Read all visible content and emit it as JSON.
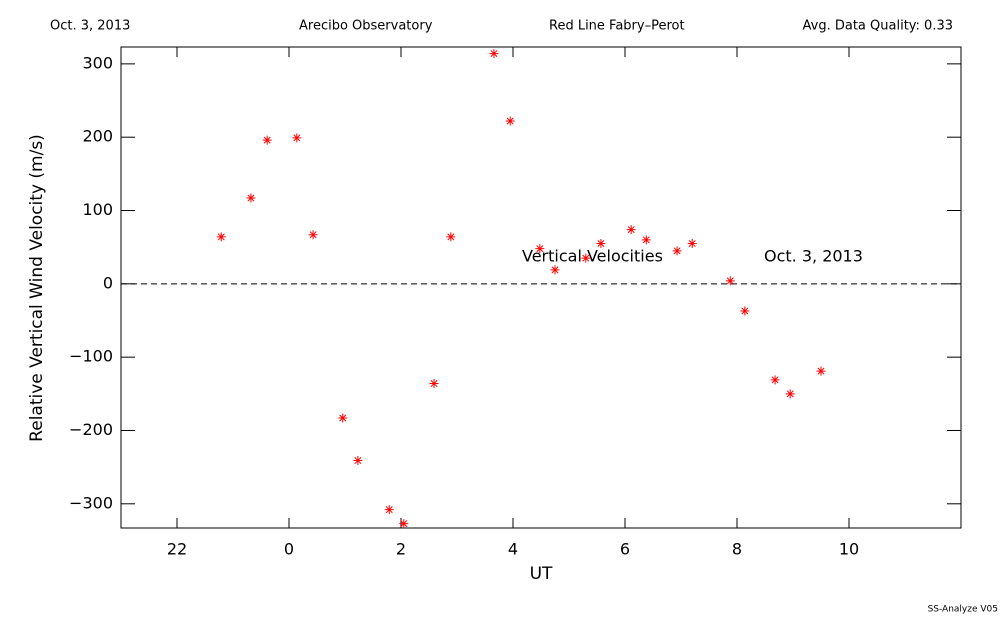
{
  "chart_data": {
    "type": "scatter",
    "header": [
      "Oct. 3, 2013",
      "Arecibo Observatory",
      "Red Line Fabry–Perot",
      "Avg. Data Quality: 0.33"
    ],
    "x_label": "UT",
    "y_label": "Relative Vertical Wind Velocity (m/s)",
    "annotations": [
      "Vertical Velocities",
      "Oct. 3, 2013"
    ],
    "footer": "SS-Analyze V05",
    "color": "#ff0000",
    "reference_line": 0,
    "xlim": [
      -3,
      12
    ],
    "xticks": [
      {
        "value": -2,
        "label": "22"
      },
      0,
      2,
      4,
      6,
      8,
      10
    ],
    "ylim": [
      -333,
      323
    ],
    "yticks": [
      {
        "value": -300,
        "label": "−300"
      },
      {
        "value": -200,
        "label": "−200"
      },
      {
        "value": -100,
        "label": "−100"
      },
      0,
      100,
      200,
      300
    ],
    "x": [
      -1.21,
      -0.68,
      -0.39,
      0.14,
      0.43,
      0.96,
      1.23,
      1.79,
      2.05,
      2.59,
      2.89,
      3.66,
      3.95,
      4.48,
      4.75,
      5.3,
      5.57,
      6.11,
      6.38,
      6.93,
      7.2,
      7.88,
      8.14,
      8.68,
      8.95,
      9.5
    ],
    "values": [
      64,
      117,
      196,
      199,
      67,
      -183,
      -241,
      -308,
      -327,
      -136,
      64,
      314,
      222,
      48,
      19,
      35,
      55,
      74,
      60,
      45,
      55,
      4,
      -37,
      -131,
      -150,
      -119
    ]
  }
}
